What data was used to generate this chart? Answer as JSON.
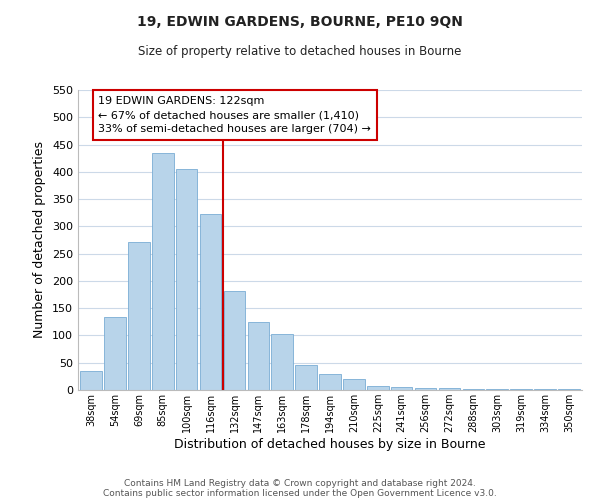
{
  "title": "19, EDWIN GARDENS, BOURNE, PE10 9QN",
  "subtitle": "Size of property relative to detached houses in Bourne",
  "xlabel": "Distribution of detached houses by size in Bourne",
  "ylabel": "Number of detached properties",
  "categories": [
    "38sqm",
    "54sqm",
    "69sqm",
    "85sqm",
    "100sqm",
    "116sqm",
    "132sqm",
    "147sqm",
    "163sqm",
    "178sqm",
    "194sqm",
    "210sqm",
    "225sqm",
    "241sqm",
    "256sqm",
    "272sqm",
    "288sqm",
    "303sqm",
    "319sqm",
    "334sqm",
    "350sqm"
  ],
  "values": [
    35,
    133,
    272,
    435,
    405,
    323,
    181,
    125,
    103,
    45,
    30,
    20,
    8,
    5,
    4,
    3,
    2,
    1,
    1,
    1,
    1
  ],
  "bar_color": "#b8d4ea",
  "bar_edge_color": "#7aadd4",
  "highlight_index": 5,
  "highlight_line_color": "#cc0000",
  "annotation_box_color": "#ffffff",
  "annotation_border_color": "#cc0000",
  "annotation_text_line1": "19 EDWIN GARDENS: 122sqm",
  "annotation_text_line2": "← 67% of detached houses are smaller (1,410)",
  "annotation_text_line3": "33% of semi-detached houses are larger (704) →",
  "ylim": [
    0,
    550
  ],
  "yticks": [
    0,
    50,
    100,
    150,
    200,
    250,
    300,
    350,
    400,
    450,
    500,
    550
  ],
  "footer_line1": "Contains HM Land Registry data © Crown copyright and database right 2024.",
  "footer_line2": "Contains public sector information licensed under the Open Government Licence v3.0.",
  "background_color": "#ffffff",
  "grid_color": "#ccd9e8"
}
